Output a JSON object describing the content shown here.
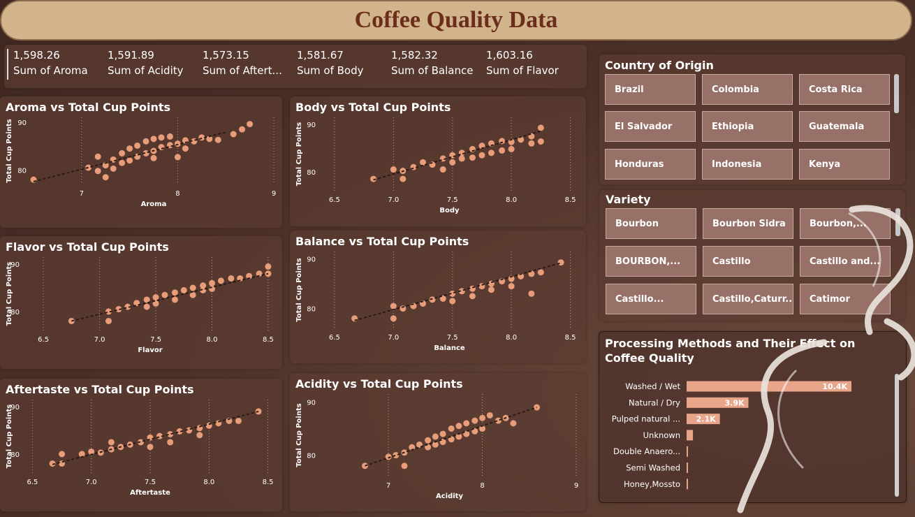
{
  "title": "Coffee Quality Data",
  "kpis": [
    {
      "value": "1,598.26",
      "label": "Sum of Aroma"
    },
    {
      "value": "1,591.89",
      "label": "Sum of Acidity"
    },
    {
      "value": "1,573.15",
      "label": "Sum of Aftert..."
    },
    {
      "value": "1,581.67",
      "label": "Sum of Body"
    },
    {
      "value": "1,582.32",
      "label": "Sum of Balance"
    },
    {
      "value": "1,603.16",
      "label": "Sum of Flavor"
    }
  ],
  "country_slicer": {
    "title": "Country of Origin",
    "items": [
      "Brazil",
      "Colombia",
      "Costa Rica",
      "El Salvador",
      "Ethiopia",
      "Guatemala",
      "Honduras",
      "Indonesia",
      "Kenya"
    ]
  },
  "variety_slicer": {
    "title": "Variety",
    "items": [
      "Bourbon",
      "Bourbon Sidra",
      "Bourbon,...",
      "BOURBON,...",
      "Castillo",
      "Castillo and...",
      "Castillo...",
      "Castillo,Caturr...",
      "Catimor"
    ]
  },
  "colors": {
    "marker": "#f0a27e",
    "trend": "#2b1a14",
    "bar": "#e8a58a",
    "title_bg": "#d2b48c",
    "title_text": "#6b2e1c"
  },
  "chart_data": [
    {
      "type": "scatter",
      "title": "Aroma vs Total Cup Points",
      "xlabel": "Aroma",
      "ylabel": "Total Cup Points",
      "xlim": [
        6.5,
        9.0
      ],
      "ylim": [
        77,
        91
      ],
      "xticks": [
        "7",
        "8",
        "9"
      ],
      "xtick_values": [
        7,
        8,
        9
      ],
      "yticks": [
        "80",
        "90"
      ],
      "ytick_values": [
        80,
        90
      ],
      "trend": [
        [
          6.5,
          77.6
        ],
        [
          8.5,
          87.9
        ]
      ],
      "points": [
        [
          6.5,
          78
        ],
        [
          7.07,
          80.5
        ],
        [
          7.17,
          79.8
        ],
        [
          7.17,
          82.8
        ],
        [
          7.25,
          81
        ],
        [
          7.25,
          78.5
        ],
        [
          7.33,
          80.3
        ],
        [
          7.33,
          82.2
        ],
        [
          7.42,
          81.5
        ],
        [
          7.42,
          83.5
        ],
        [
          7.5,
          82
        ],
        [
          7.5,
          84.5
        ],
        [
          7.58,
          82.8
        ],
        [
          7.58,
          85.1
        ],
        [
          7.67,
          83.5
        ],
        [
          7.67,
          86
        ],
        [
          7.75,
          84
        ],
        [
          7.75,
          86.5
        ],
        [
          7.75,
          82.5
        ],
        [
          7.83,
          84.8
        ],
        [
          7.83,
          86.8
        ],
        [
          7.92,
          85.2
        ],
        [
          7.92,
          87
        ],
        [
          8.0,
          85.5
        ],
        [
          8.0,
          82.7
        ],
        [
          8.08,
          86.2
        ],
        [
          8.08,
          84.5
        ],
        [
          8.17,
          86
        ],
        [
          8.25,
          86.8
        ],
        [
          8.33,
          86.5
        ],
        [
          8.42,
          86.3
        ],
        [
          8.58,
          87.5
        ],
        [
          8.67,
          88.5
        ],
        [
          8.75,
          89.6
        ]
      ]
    },
    {
      "type": "scatter",
      "title": "Body vs Total Cup Points",
      "xlabel": "Body",
      "ylabel": "Total Cup Points",
      "xlim": [
        6.4,
        8.55
      ],
      "ylim": [
        76,
        91.5
      ],
      "xticks": [
        "6.5",
        "7.0",
        "7.5",
        "8.0",
        "8.5"
      ],
      "xtick_values": [
        6.5,
        7.0,
        7.5,
        8.0,
        8.5
      ],
      "yticks": [
        "80",
        "90"
      ],
      "ytick_values": [
        80,
        90
      ],
      "trend": [
        [
          6.83,
          78.3
        ],
        [
          8.25,
          88.6
        ]
      ],
      "points": [
        [
          6.83,
          78.5
        ],
        [
          7.0,
          80.5
        ],
        [
          7.08,
          80.2
        ],
        [
          7.08,
          78.5
        ],
        [
          7.17,
          81
        ],
        [
          7.25,
          82
        ],
        [
          7.33,
          81.5
        ],
        [
          7.42,
          82.8
        ],
        [
          7.42,
          80.5
        ],
        [
          7.5,
          83.5
        ],
        [
          7.5,
          82
        ],
        [
          7.58,
          84
        ],
        [
          7.58,
          82.8
        ],
        [
          7.67,
          84.8
        ],
        [
          7.67,
          83
        ],
        [
          7.75,
          85.5
        ],
        [
          7.75,
          83.5
        ],
        [
          7.83,
          86
        ],
        [
          7.83,
          84
        ],
        [
          7.92,
          86.5
        ],
        [
          7.92,
          84.5
        ],
        [
          8.0,
          86.3
        ],
        [
          8.0,
          84.8
        ],
        [
          8.08,
          86.8
        ],
        [
          8.17,
          86
        ],
        [
          8.17,
          87.5
        ],
        [
          8.25,
          89.3
        ],
        [
          8.25,
          86.4
        ]
      ]
    },
    {
      "type": "scatter",
      "title": "Flavor vs Total Cup Points",
      "xlabel": "Flavor",
      "ylabel": "Total Cup Points",
      "xlim": [
        6.35,
        8.55
      ],
      "ylim": [
        76,
        91.5
      ],
      "xticks": [
        "6.5",
        "7.0",
        "7.5",
        "8.0",
        "8.5"
      ],
      "xtick_values": [
        6.5,
        7.0,
        7.5,
        8.0,
        8.5
      ],
      "yticks": [
        "80",
        "90"
      ],
      "ytick_values": [
        80,
        90
      ],
      "trend": [
        [
          6.75,
          78
        ],
        [
          8.5,
          88
        ]
      ],
      "points": [
        [
          6.75,
          78
        ],
        [
          7.08,
          80
        ],
        [
          7.08,
          78
        ],
        [
          7.17,
          80.5
        ],
        [
          7.25,
          81
        ],
        [
          7.33,
          81.8
        ],
        [
          7.42,
          82.5
        ],
        [
          7.42,
          81
        ],
        [
          7.5,
          83
        ],
        [
          7.5,
          81.7
        ],
        [
          7.58,
          83.5
        ],
        [
          7.67,
          84
        ],
        [
          7.67,
          82.5
        ],
        [
          7.75,
          84.5
        ],
        [
          7.83,
          85
        ],
        [
          7.83,
          83.5
        ],
        [
          7.92,
          85.5
        ],
        [
          7.92,
          84.5
        ],
        [
          8.0,
          86
        ],
        [
          8.0,
          84.8
        ],
        [
          8.08,
          86.5
        ],
        [
          8.17,
          87
        ],
        [
          8.25,
          87
        ],
        [
          8.33,
          87.5
        ],
        [
          8.42,
          88
        ],
        [
          8.5,
          89.5
        ],
        [
          8.5,
          88
        ]
      ]
    },
    {
      "type": "scatter",
      "title": "Balance vs Total Cup Points",
      "xlabel": "Balance",
      "ylabel": "Total Cup Points",
      "xlim": [
        6.4,
        8.55
      ],
      "ylim": [
        76,
        91.5
      ],
      "xticks": [
        "6.5",
        "7.0",
        "7.5",
        "8.0",
        "8.5"
      ],
      "xtick_values": [
        6.5,
        7.0,
        7.5,
        8.0,
        8.5
      ],
      "yticks": [
        "80",
        "90"
      ],
      "ytick_values": [
        80,
        90
      ],
      "trend": [
        [
          6.67,
          77.6
        ],
        [
          8.42,
          89.2
        ]
      ],
      "points": [
        [
          6.67,
          78
        ],
        [
          7.0,
          80.5
        ],
        [
          7.0,
          78
        ],
        [
          7.08,
          80
        ],
        [
          7.17,
          80.5
        ],
        [
          7.25,
          81
        ],
        [
          7.33,
          81.8
        ],
        [
          7.42,
          82
        ],
        [
          7.5,
          83
        ],
        [
          7.5,
          81.5
        ],
        [
          7.58,
          83.5
        ],
        [
          7.67,
          84
        ],
        [
          7.67,
          82.5
        ],
        [
          7.75,
          84.5
        ],
        [
          7.83,
          85
        ],
        [
          7.83,
          83.8
        ],
        [
          7.92,
          85.5
        ],
        [
          8.0,
          86
        ],
        [
          8.0,
          84.5
        ],
        [
          8.08,
          86.5
        ],
        [
          8.17,
          87
        ],
        [
          8.17,
          83
        ],
        [
          8.25,
          87.3
        ],
        [
          8.42,
          89.3
        ]
      ]
    },
    {
      "type": "scatter",
      "title": "Aftertaste vs Total Cup Points",
      "xlabel": "Aftertaste",
      "ylabel": "Total Cup Points",
      "xlim": [
        6.45,
        8.55
      ],
      "ylim": [
        76,
        91.5
      ],
      "xticks": [
        "6.5",
        "7.0",
        "7.5",
        "8.0",
        "8.5"
      ],
      "xtick_values": [
        6.5,
        7.0,
        7.5,
        8.0,
        8.5
      ],
      "yticks": [
        "80",
        "90"
      ],
      "ytick_values": [
        80,
        90
      ],
      "trend": [
        [
          6.67,
          77.8
        ],
        [
          8.42,
          89
        ]
      ],
      "points": [
        [
          6.67,
          78
        ],
        [
          6.75,
          78
        ],
        [
          6.75,
          80
        ],
        [
          6.92,
          80
        ],
        [
          7.0,
          80.5
        ],
        [
          7.08,
          80.3
        ],
        [
          7.17,
          81
        ],
        [
          7.17,
          82.5
        ],
        [
          7.25,
          81.5
        ],
        [
          7.33,
          82
        ],
        [
          7.42,
          82.5
        ],
        [
          7.5,
          83.5
        ],
        [
          7.5,
          81.5
        ],
        [
          7.58,
          83.8
        ],
        [
          7.67,
          84.2
        ],
        [
          7.67,
          82.5
        ],
        [
          7.75,
          84.8
        ],
        [
          7.83,
          85
        ],
        [
          7.92,
          85.5
        ],
        [
          7.92,
          84
        ],
        [
          8.0,
          86
        ],
        [
          8.08,
          86.5
        ],
        [
          8.17,
          87
        ],
        [
          8.25,
          87
        ],
        [
          8.42,
          89
        ]
      ]
    },
    {
      "type": "scatter",
      "title": "Acidity vs Total Cup Points",
      "xlabel": "Acidity",
      "ylabel": "Total Cup Points",
      "xlim": [
        6.3,
        9.0
      ],
      "ylim": [
        76,
        91.5
      ],
      "xticks": [
        "7",
        "8",
        "9"
      ],
      "xtick_values": [
        7,
        8,
        9
      ],
      "yticks": [
        "80",
        "90"
      ],
      "ytick_values": [
        80,
        90
      ],
      "trend": [
        [
          6.75,
          78
        ],
        [
          8.58,
          89
        ]
      ],
      "points": [
        [
          6.75,
          78
        ],
        [
          7.0,
          79.7
        ],
        [
          7.08,
          80
        ],
        [
          7.17,
          80.5
        ],
        [
          7.17,
          78
        ],
        [
          7.25,
          81.5
        ],
        [
          7.33,
          82
        ],
        [
          7.42,
          82.8
        ],
        [
          7.42,
          81.5
        ],
        [
          7.5,
          83.5
        ],
        [
          7.5,
          82
        ],
        [
          7.58,
          84
        ],
        [
          7.58,
          82.5
        ],
        [
          7.67,
          85
        ],
        [
          7.67,
          83
        ],
        [
          7.75,
          85.5
        ],
        [
          7.75,
          83.5
        ],
        [
          7.83,
          86
        ],
        [
          7.83,
          84
        ],
        [
          7.92,
          86.5
        ],
        [
          7.92,
          84.5
        ],
        [
          8.0,
          87
        ],
        [
          8.0,
          85
        ],
        [
          8.08,
          87.5
        ],
        [
          8.17,
          86.5
        ],
        [
          8.25,
          87
        ],
        [
          8.33,
          86
        ],
        [
          8.58,
          89
        ]
      ]
    },
    {
      "type": "bar",
      "orientation": "horizontal",
      "title": "Processing Methods and Their Effect on Coffee Quality",
      "categories": [
        "Washed / Wet",
        "Natural / Dry",
        "Pulped natural ...",
        "Unknown",
        "Double Anaero...",
        "Semi Washed",
        "Honey,Mossto"
      ],
      "values": [
        10400,
        3900,
        2100,
        400,
        80,
        80,
        80
      ],
      "data_labels": [
        "10.4K",
        "3.9K",
        "2.1K",
        "",
        "",
        "",
        ""
      ],
      "xlim": [
        0,
        10400
      ]
    }
  ]
}
